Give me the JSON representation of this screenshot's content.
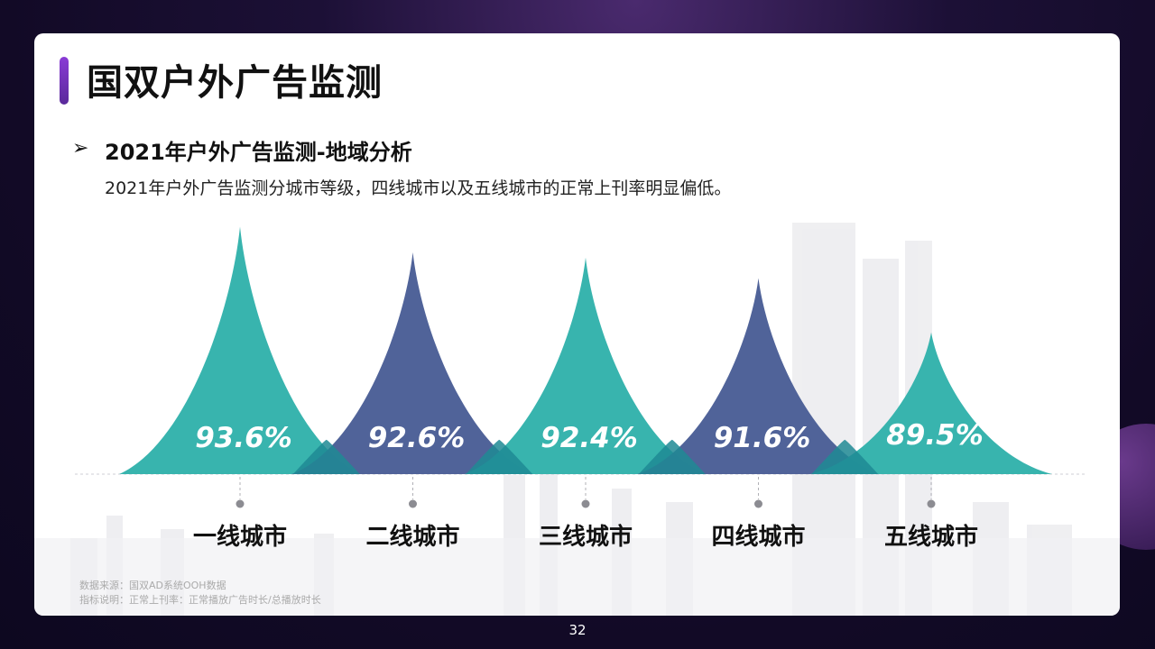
{
  "header": {
    "title": "国双户外广告监测",
    "bullet_icon": "➢",
    "subtitle": "2021年户外广告监测-地域分析",
    "description": "2021年户外广告监测分城市等级，四线城市以及五线城市的正常上刊率明显偏低。"
  },
  "chart_data": {
    "type": "bar",
    "categories": [
      "一线城市",
      "二线城市",
      "三线城市",
      "四线城市",
      "五线城市"
    ],
    "values": [
      93.6,
      92.6,
      92.4,
      91.6,
      89.5
    ],
    "value_labels": [
      "93.6%",
      "92.6%",
      "92.4%",
      "91.6%",
      "89.5%"
    ],
    "colors": [
      "#32b2ab",
      "#4a5e96",
      "#32b2ab",
      "#4a5e96",
      "#32b2ab"
    ],
    "overlap_color": "#1e8a94",
    "grid": false,
    "legend": "none"
  },
  "footer": {
    "source": "数据来源：国双AD系统OOH数据",
    "metric": "指标说明：正常上刊率：正常播放广告时长/总播放时长",
    "page_number": "32"
  }
}
